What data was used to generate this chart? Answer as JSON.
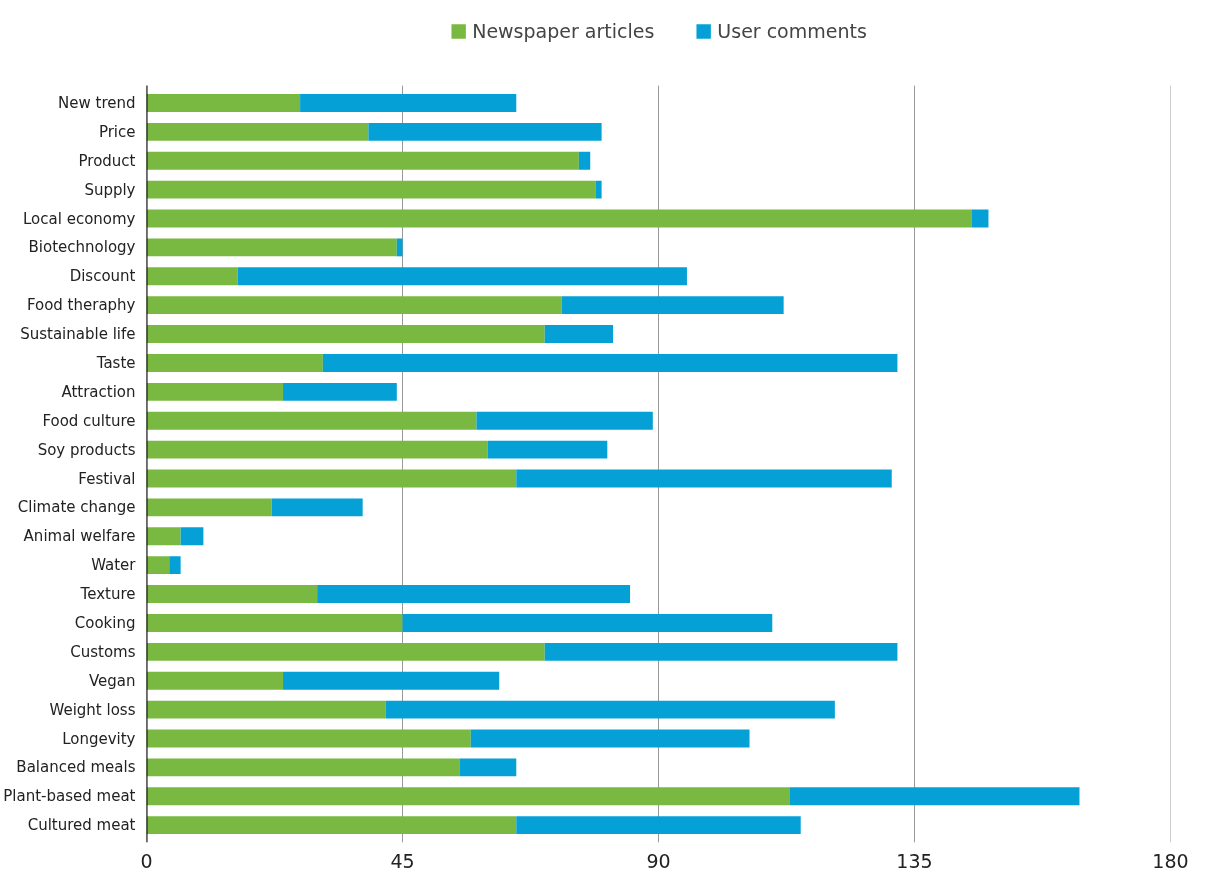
{
  "chart_data": {
    "type": "bar",
    "orientation": "horizontal",
    "stacked": true,
    "categories": [
      "New trend",
      "Price",
      "Product",
      "Supply",
      "Local economy",
      "Biotechnology",
      "Discount",
      "Food theraphy",
      "Sustainable life",
      "Taste",
      "Attraction",
      "Food culture",
      "Soy products",
      "Festival",
      "Climate change",
      "Animal welfare",
      "Water",
      "Texture",
      "Cooking",
      "Customs",
      "Vegan",
      "Weight loss",
      "Longevity",
      "Balanced meals",
      "Plant-based meat",
      "Cultured meat"
    ],
    "series": [
      {
        "name": "Newspaper articles",
        "color": "#7ab941",
        "values": [
          27,
          39,
          76,
          79,
          145,
          44,
          16,
          73,
          70,
          31,
          24,
          58,
          60,
          65,
          22,
          6,
          4,
          30,
          45,
          70,
          24,
          42,
          57,
          55,
          113,
          65
        ]
      },
      {
        "name": "User comments",
        "color": "#05a0d6",
        "values": [
          38,
          41,
          2,
          1,
          3,
          1,
          79,
          39,
          12,
          101,
          20,
          31,
          21,
          66,
          16,
          4,
          2,
          55,
          65,
          62,
          38,
          79,
          49,
          10,
          51,
          50
        ]
      }
    ],
    "xlim": [
      0,
      180
    ],
    "xticks": [
      0,
      45,
      90,
      135,
      180
    ],
    "grid": "x",
    "legend": "top"
  }
}
